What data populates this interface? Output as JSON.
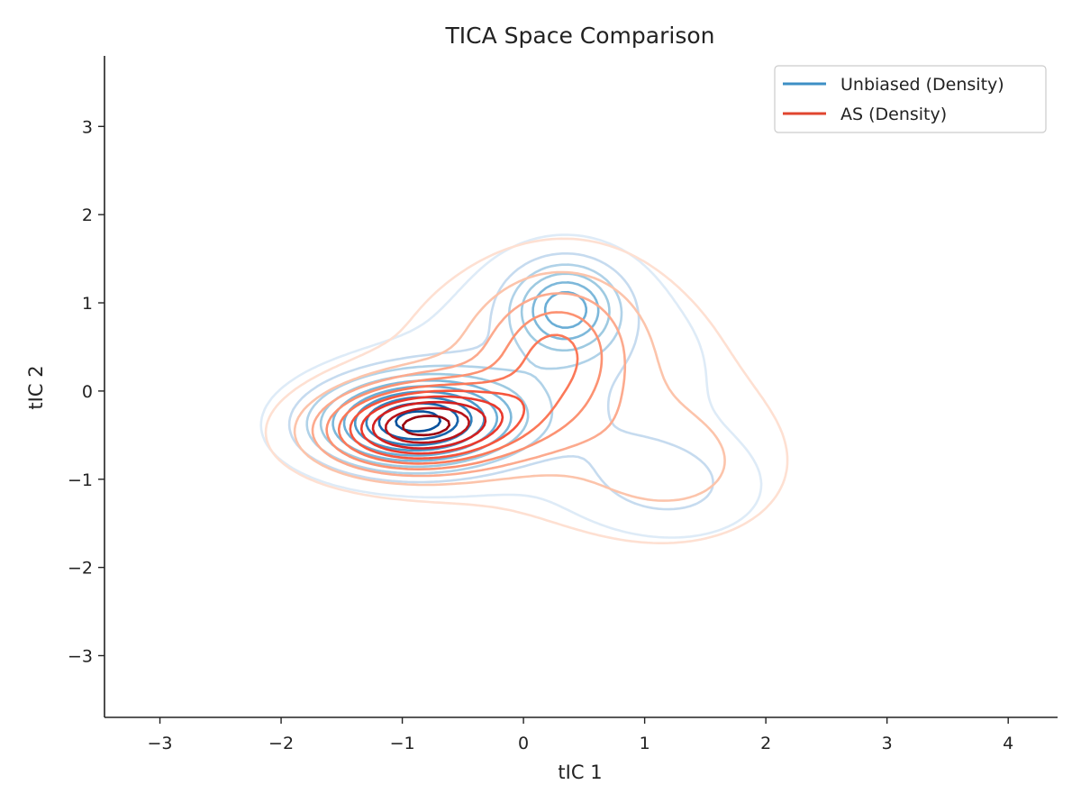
{
  "chart_data": {
    "type": "contour",
    "title": "TICA Space Comparison",
    "xlabel": "tIC 1",
    "ylabel": "tIC 2",
    "xlim": [
      -3.45,
      4.4
    ],
    "ylim": [
      -3.7,
      3.8
    ],
    "xticks": [
      -3,
      -2,
      -1,
      0,
      1,
      2,
      3,
      4
    ],
    "yticks": [
      -3,
      -2,
      -1,
      0,
      1,
      2,
      3
    ],
    "xtick_labels": [
      "−3",
      "−2",
      "−1",
      "0",
      "1",
      "2",
      "3",
      "4"
    ],
    "ytick_labels": [
      "−3",
      "−2",
      "−1",
      "0",
      "1",
      "2",
      "3"
    ],
    "grid": false,
    "legend_position": "top-right",
    "series": [
      {
        "name": "Unbiased (Density)",
        "color": "#3d8fc5",
        "levels": 10,
        "level_colors": [
          "#deebf7",
          "#c6dbef",
          "#b0d2e8",
          "#9ecae1",
          "#7db8da",
          "#6baed6",
          "#4a98c9",
          "#3182bd",
          "#1764ab",
          "#08519c"
        ],
        "components": [
          {
            "weight": 1.0,
            "mean": [
              -0.9,
              -0.35
            ],
            "sd": [
              0.55,
              0.35
            ],
            "rho": 0.05
          },
          {
            "weight": 0.55,
            "mean": [
              0.35,
              0.95
            ],
            "sd": [
              0.3,
              0.35
            ],
            "rho": 0.0
          },
          {
            "weight": 0.2,
            "mean": [
              1.2,
              -1.05
            ],
            "sd": [
              0.5,
              0.4
            ],
            "rho": -0.1
          },
          {
            "weight": 0.18,
            "mean": [
              0.3,
              0.2
            ],
            "sd": [
              0.9,
              0.9
            ],
            "rho": 0.0
          }
        ]
      },
      {
        "name": "AS (Density)",
        "color": "#e0452f",
        "levels": 10,
        "level_colors": [
          "#fee0d2",
          "#fcc4ab",
          "#fcaa8e",
          "#fc9272",
          "#fb7858",
          "#f6553c",
          "#ea3a2d",
          "#d32020",
          "#b91419",
          "#99000d"
        ],
        "components": [
          {
            "weight": 1.0,
            "mean": [
              -0.85,
              -0.4
            ],
            "sd": [
              0.55,
              0.33
            ],
            "rho": 0.1
          },
          {
            "weight": 0.35,
            "mean": [
              0.25,
              0.45
            ],
            "sd": [
              0.4,
              0.55
            ],
            "rho": 0.1
          },
          {
            "weight": 0.16,
            "mean": [
              1.3,
              -0.9
            ],
            "sd": [
              0.6,
              0.55
            ],
            "rho": 0.0
          },
          {
            "weight": 0.2,
            "mean": [
              0.3,
              0.1
            ],
            "sd": [
              1.0,
              1.0
            ],
            "rho": 0.0
          }
        ]
      }
    ]
  }
}
